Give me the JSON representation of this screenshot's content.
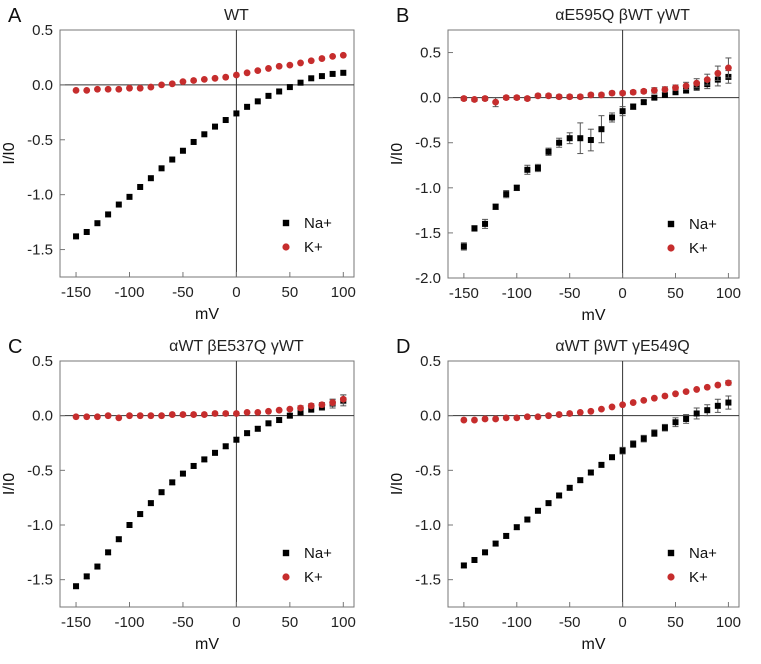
{
  "figure": {
    "colors": {
      "na": "#000000",
      "k": "#c62d2d",
      "frame": "#777777"
    }
  },
  "chart_data": [
    {
      "panel_letter": "A",
      "type": "scatter",
      "title": "WT",
      "xlabel": "mV",
      "ylabel": "I/I0",
      "xlim": [
        -165,
        110
      ],
      "ylim": [
        -1.75,
        0.5
      ],
      "xticks": [
        -150,
        -100,
        -50,
        0,
        50,
        100
      ],
      "yticks": [
        -1.5,
        -1.0,
        -0.5,
        0.0,
        0.5
      ],
      "ytick_labels": [
        "-1.5",
        "-1.0",
        "-0.5",
        "0.0",
        "0.5"
      ],
      "grid": false,
      "legend_position": "bottom-right",
      "series": [
        {
          "name": "Na+",
          "marker": "square",
          "x": [
            -150,
            -140,
            -130,
            -120,
            -110,
            -100,
            -90,
            -80,
            -70,
            -60,
            -50,
            -40,
            -30,
            -20,
            -10,
            0,
            10,
            20,
            30,
            40,
            50,
            60,
            70,
            80,
            90,
            100
          ],
          "y": [
            -1.38,
            -1.34,
            -1.26,
            -1.18,
            -1.09,
            -1.02,
            -0.93,
            -0.85,
            -0.76,
            -0.68,
            -0.6,
            -0.52,
            -0.45,
            -0.38,
            -0.32,
            -0.26,
            -0.2,
            -0.15,
            -0.1,
            -0.06,
            -0.02,
            0.02,
            0.06,
            0.08,
            0.1,
            0.11
          ]
        },
        {
          "name": "K+",
          "marker": "circle",
          "x": [
            -150,
            -140,
            -130,
            -120,
            -110,
            -100,
            -90,
            -80,
            -70,
            -60,
            -50,
            -40,
            -30,
            -20,
            -10,
            0,
            10,
            20,
            30,
            40,
            50,
            60,
            70,
            80,
            90,
            100
          ],
          "y": [
            -0.05,
            -0.05,
            -0.04,
            -0.04,
            -0.04,
            -0.03,
            -0.03,
            -0.02,
            0.0,
            0.01,
            0.03,
            0.04,
            0.05,
            0.06,
            0.07,
            0.09,
            0.11,
            0.13,
            0.15,
            0.17,
            0.18,
            0.2,
            0.22,
            0.24,
            0.26,
            0.27
          ]
        }
      ]
    },
    {
      "panel_letter": "B",
      "type": "scatter",
      "title": "αE595Q βWT γWT",
      "xlabel": "mV",
      "ylabel": "I/I0",
      "xlim": [
        -165,
        110
      ],
      "ylim": [
        -2.0,
        0.75
      ],
      "xticks": [
        -150,
        -100,
        -50,
        0,
        50,
        100
      ],
      "yticks": [
        -2.0,
        -1.5,
        -1.0,
        -0.5,
        0.0,
        0.5
      ],
      "ytick_labels": [
        "-2.0",
        "-1.5",
        "-1.0",
        "-0.5",
        "0.0",
        "0.5"
      ],
      "grid": false,
      "legend_position": "bottom-right",
      "series": [
        {
          "name": "Na+",
          "marker": "square",
          "x": [
            -150,
            -140,
            -130,
            -120,
            -110,
            -100,
            -90,
            -80,
            -70,
            -60,
            -50,
            -40,
            -30,
            -20,
            -10,
            0,
            10,
            20,
            30,
            40,
            50,
            60,
            70,
            80,
            90,
            100
          ],
          "y": [
            -1.65,
            -1.45,
            -1.4,
            -1.21,
            -1.07,
            -1.0,
            -0.8,
            -0.78,
            -0.6,
            -0.5,
            -0.45,
            -0.45,
            -0.47,
            -0.35,
            -0.22,
            -0.15,
            -0.1,
            -0.05,
            0.0,
            0.03,
            0.06,
            0.08,
            0.12,
            0.15,
            0.2,
            0.23
          ],
          "error": [
            0.04,
            0.03,
            0.05,
            0.03,
            0.04,
            0.03,
            0.05,
            0.04,
            0.04,
            0.05,
            0.06,
            0.17,
            0.12,
            0.15,
            0.05,
            0.05,
            0.03,
            0.02,
            0.02,
            0.02,
            0.02,
            0.03,
            0.04,
            0.05,
            0.07,
            0.07
          ]
        },
        {
          "name": "K+",
          "marker": "circle",
          "x": [
            -150,
            -140,
            -130,
            -120,
            -110,
            -100,
            -90,
            -80,
            -70,
            -60,
            -50,
            -40,
            -30,
            -20,
            -10,
            0,
            10,
            20,
            30,
            40,
            50,
            60,
            70,
            80,
            90,
            100
          ],
          "y": [
            -0.01,
            -0.02,
            -0.01,
            -0.05,
            0.0,
            0.0,
            -0.01,
            0.02,
            0.02,
            0.01,
            0.01,
            0.01,
            0.03,
            0.03,
            0.05,
            0.05,
            0.06,
            0.07,
            0.08,
            0.09,
            0.11,
            0.13,
            0.16,
            0.2,
            0.27,
            0.33
          ],
          "error": [
            0.02,
            0.02,
            0.02,
            0.05,
            0.02,
            0.02,
            0.02,
            0.02,
            0.02,
            0.02,
            0.02,
            0.02,
            0.02,
            0.02,
            0.02,
            0.02,
            0.02,
            0.02,
            0.03,
            0.03,
            0.03,
            0.04,
            0.05,
            0.06,
            0.08,
            0.11
          ]
        }
      ]
    },
    {
      "panel_letter": "C",
      "type": "scatter",
      "title": "αWT βE537Q γWT",
      "xlabel": "mV",
      "ylabel": "I/I0",
      "xlim": [
        -165,
        110
      ],
      "ylim": [
        -1.75,
        0.5
      ],
      "xticks": [
        -150,
        -100,
        -50,
        0,
        50,
        100
      ],
      "yticks": [
        -1.5,
        -1.0,
        -0.5,
        0.0,
        0.5
      ],
      "ytick_labels": [
        "-1.5",
        "-1.0",
        "-0.5",
        "0.0",
        "0.5"
      ],
      "grid": false,
      "legend_position": "bottom-right",
      "series": [
        {
          "name": "Na+",
          "marker": "square",
          "x": [
            -150,
            -140,
            -130,
            -120,
            -110,
            -100,
            -90,
            -80,
            -70,
            -60,
            -50,
            -40,
            -30,
            -20,
            -10,
            0,
            10,
            20,
            30,
            40,
            50,
            60,
            70,
            80,
            90,
            100
          ],
          "y": [
            -1.56,
            -1.47,
            -1.38,
            -1.25,
            -1.13,
            -1.0,
            -0.9,
            -0.8,
            -0.7,
            -0.61,
            -0.53,
            -0.46,
            -0.4,
            -0.34,
            -0.28,
            -0.22,
            -0.16,
            -0.12,
            -0.07,
            -0.04,
            0.0,
            0.03,
            0.06,
            0.08,
            0.11,
            0.14
          ],
          "error": [
            0.02,
            0.02,
            0.02,
            0.02,
            0.02,
            0.02,
            0.02,
            0.02,
            0.02,
            0.02,
            0.02,
            0.02,
            0.02,
            0.02,
            0.02,
            0.02,
            0.02,
            0.02,
            0.02,
            0.02,
            0.02,
            0.02,
            0.03,
            0.03,
            0.04,
            0.05
          ]
        },
        {
          "name": "K+",
          "marker": "circle",
          "x": [
            -150,
            -140,
            -130,
            -120,
            -110,
            -100,
            -90,
            -80,
            -70,
            -60,
            -50,
            -40,
            -30,
            -20,
            -10,
            0,
            10,
            20,
            30,
            40,
            50,
            60,
            70,
            80,
            90,
            100
          ],
          "y": [
            -0.01,
            -0.01,
            -0.01,
            0.0,
            -0.02,
            0.0,
            0.0,
            0.0,
            0.0,
            0.01,
            0.01,
            0.01,
            0.01,
            0.02,
            0.02,
            0.02,
            0.03,
            0.03,
            0.04,
            0.05,
            0.06,
            0.07,
            0.09,
            0.1,
            0.12,
            0.15
          ],
          "error": [
            0.01,
            0.01,
            0.01,
            0.01,
            0.01,
            0.01,
            0.01,
            0.01,
            0.01,
            0.01,
            0.01,
            0.01,
            0.01,
            0.01,
            0.01,
            0.01,
            0.01,
            0.01,
            0.01,
            0.01,
            0.01,
            0.02,
            0.02,
            0.02,
            0.03,
            0.04
          ]
        }
      ]
    },
    {
      "panel_letter": "D",
      "type": "scatter",
      "title": "αWT βWT γE549Q",
      "xlabel": "mV",
      "ylabel": "I/I0",
      "xlim": [
        -165,
        110
      ],
      "ylim": [
        -1.75,
        0.5
      ],
      "xticks": [
        -150,
        -100,
        -50,
        0,
        50,
        100
      ],
      "yticks": [
        -1.5,
        -1.0,
        -0.5,
        0.0,
        0.5
      ],
      "ytick_labels": [
        "-1.5",
        "-1.0",
        "-0.5",
        "0.0",
        "0.5"
      ],
      "grid": false,
      "legend_position": "bottom-right",
      "series": [
        {
          "name": "Na+",
          "marker": "square",
          "x": [
            -150,
            -140,
            -130,
            -120,
            -110,
            -100,
            -90,
            -80,
            -70,
            -60,
            -50,
            -40,
            -30,
            -20,
            -10,
            0,
            10,
            20,
            30,
            40,
            50,
            60,
            70,
            80,
            90,
            100
          ],
          "y": [
            -1.37,
            -1.32,
            -1.25,
            -1.17,
            -1.1,
            -1.02,
            -0.95,
            -0.87,
            -0.8,
            -0.73,
            -0.66,
            -0.59,
            -0.52,
            -0.45,
            -0.38,
            -0.32,
            -0.26,
            -0.21,
            -0.16,
            -0.11,
            -0.06,
            -0.03,
            0.02,
            0.05,
            0.09,
            0.12
          ],
          "error": [
            0.02,
            0.02,
            0.02,
            0.02,
            0.02,
            0.02,
            0.02,
            0.02,
            0.02,
            0.02,
            0.02,
            0.02,
            0.02,
            0.02,
            0.02,
            0.03,
            0.03,
            0.03,
            0.03,
            0.03,
            0.04,
            0.04,
            0.05,
            0.05,
            0.06,
            0.06
          ]
        },
        {
          "name": "K+",
          "marker": "circle",
          "x": [
            -150,
            -140,
            -130,
            -120,
            -110,
            -100,
            -90,
            -80,
            -70,
            -60,
            -50,
            -40,
            -30,
            -20,
            -10,
            0,
            10,
            20,
            30,
            40,
            50,
            60,
            70,
            80,
            90,
            100
          ],
          "y": [
            -0.04,
            -0.04,
            -0.03,
            -0.03,
            -0.02,
            -0.02,
            -0.01,
            -0.01,
            0.0,
            0.01,
            0.02,
            0.03,
            0.04,
            0.06,
            0.08,
            0.1,
            0.12,
            0.14,
            0.16,
            0.18,
            0.2,
            0.22,
            0.24,
            0.26,
            0.28,
            0.3
          ],
          "error": [
            0.01,
            0.01,
            0.01,
            0.01,
            0.01,
            0.01,
            0.01,
            0.01,
            0.01,
            0.01,
            0.01,
            0.01,
            0.01,
            0.01,
            0.01,
            0.01,
            0.01,
            0.01,
            0.01,
            0.01,
            0.01,
            0.01,
            0.01,
            0.01,
            0.01,
            0.02
          ]
        }
      ]
    }
  ]
}
